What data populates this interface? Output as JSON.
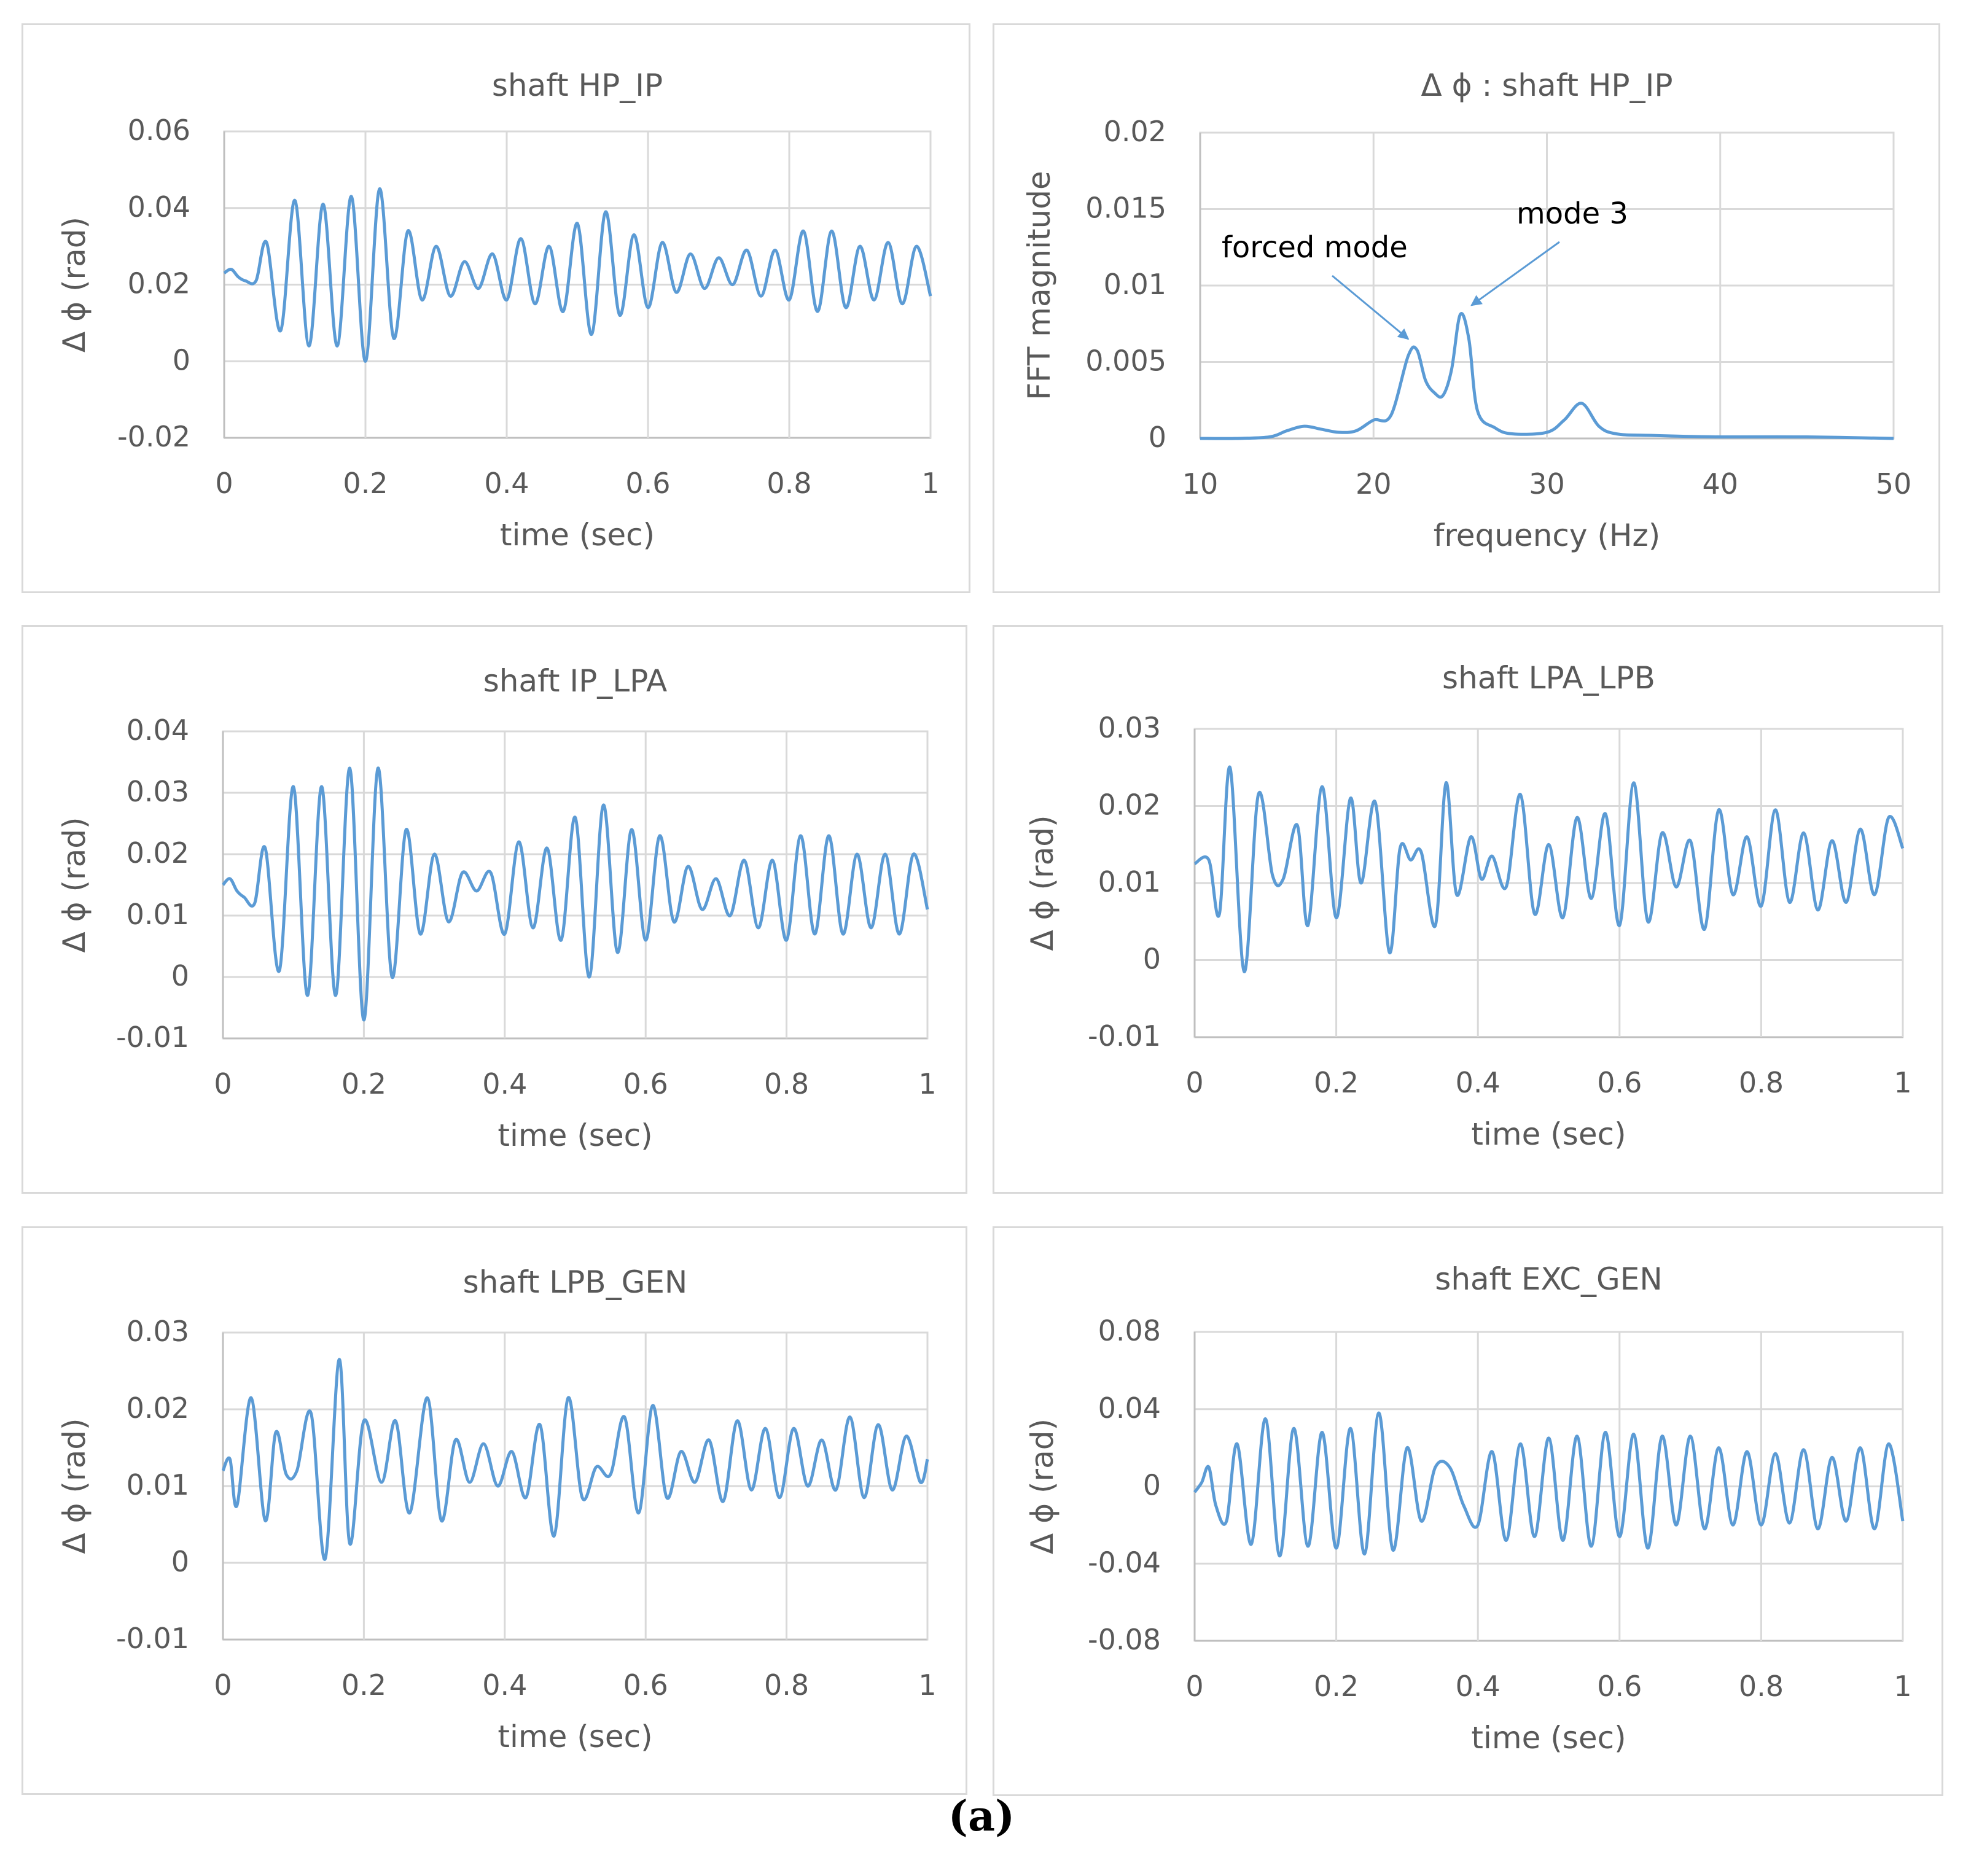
{
  "colors": {
    "series": "#5b9bd5",
    "grid": "#d9d9d9",
    "axis": "#bfbfbf",
    "text": "#595959",
    "annotation": "#000000"
  },
  "caption": "(a)",
  "chart_data": [
    {
      "id": "hp_ip",
      "type": "line",
      "title": "shaft HP_IP",
      "xlabel": "time (sec)",
      "ylabel": "Δ ϕ (rad)",
      "xlim": [
        0,
        1
      ],
      "ylim": [
        -0.02,
        0.06
      ],
      "xticks": [
        0,
        0.2,
        0.4,
        0.6,
        0.8,
        1
      ],
      "xtick_labels": [
        "0",
        "0.2",
        "0.4",
        "0.6",
        "0.8",
        "1"
      ],
      "yticks": [
        -0.02,
        0,
        0.02,
        0.04,
        0.06
      ],
      "ytick_labels": [
        "-0.02",
        "0",
        "0.02",
        "0.04",
        "0.06"
      ],
      "series": [
        {
          "name": "Δ ϕ",
          "x": [
            0,
            0.01,
            0.02,
            0.03,
            0.045,
            0.06,
            0.08,
            0.1,
            0.12,
            0.14,
            0.16,
            0.18,
            0.2,
            0.22,
            0.24,
            0.26,
            0.28,
            0.3,
            0.32,
            0.34,
            0.36,
            0.38,
            0.4,
            0.42,
            0.44,
            0.46,
            0.48,
            0.5,
            0.52,
            0.54,
            0.56,
            0.58,
            0.6,
            0.62,
            0.64,
            0.66,
            0.68,
            0.7,
            0.72,
            0.74,
            0.76,
            0.78,
            0.8,
            0.82,
            0.84,
            0.86,
            0.88,
            0.9,
            0.92,
            0.94,
            0.96,
            0.98,
            1.0
          ],
          "y": [
            0.023,
            0.024,
            0.022,
            0.021,
            0.021,
            0.031,
            0.008,
            0.042,
            0.004,
            0.041,
            0.004,
            0.043,
            0.0,
            0.045,
            0.006,
            0.034,
            0.016,
            0.03,
            0.017,
            0.026,
            0.019,
            0.028,
            0.016,
            0.032,
            0.015,
            0.03,
            0.013,
            0.036,
            0.007,
            0.039,
            0.012,
            0.033,
            0.014,
            0.031,
            0.018,
            0.028,
            0.019,
            0.027,
            0.02,
            0.029,
            0.017,
            0.029,
            0.016,
            0.034,
            0.013,
            0.034,
            0.014,
            0.03,
            0.016,
            0.031,
            0.015,
            0.03,
            0.017
          ]
        }
      ]
    },
    {
      "id": "fft",
      "type": "line",
      "title": "Δ ϕ : shaft HP_IP",
      "xlabel": "frequency (Hz)",
      "ylabel": "FFT magnitude",
      "xlim": [
        10,
        50
      ],
      "ylim": [
        0,
        0.02
      ],
      "xticks": [
        10,
        20,
        30,
        40,
        50
      ],
      "xtick_labels": [
        "10",
        "20",
        "30",
        "40",
        "50"
      ],
      "yticks": [
        0,
        0.005,
        0.01,
        0.015,
        0.02
      ],
      "ytick_labels": [
        "0",
        "0.005",
        "0.01",
        "0.015",
        "0.02"
      ],
      "annotations": [
        {
          "text": "forced mode",
          "x": 21.0,
          "y": 0.0061
        },
        {
          "text": "mode 3",
          "x": 25.5,
          "y": 0.0083
        }
      ],
      "series": [
        {
          "name": "FFT",
          "x": [
            10,
            12,
            14,
            15,
            16,
            17,
            18,
            19,
            20,
            21,
            22,
            22.5,
            23,
            23.5,
            24,
            24.5,
            25,
            25.5,
            26,
            27,
            28,
            30,
            31,
            32,
            33,
            34,
            36,
            40,
            45,
            50
          ],
          "y": [
            0.0,
            0.0,
            0.0001,
            0.0005,
            0.0008,
            0.0006,
            0.0004,
            0.0005,
            0.0012,
            0.0015,
            0.0054,
            0.0058,
            0.0038,
            0.003,
            0.0028,
            0.0045,
            0.0081,
            0.0065,
            0.0018,
            0.0007,
            0.0003,
            0.0004,
            0.0012,
            0.0023,
            0.0008,
            0.0003,
            0.0002,
            0.0001,
            0.0001,
            0.0
          ]
        }
      ]
    },
    {
      "id": "ip_lpa",
      "type": "line",
      "title": "shaft IP_LPA",
      "xlabel": "time (sec)",
      "ylabel": "Δ ϕ (rad)",
      "xlim": [
        0,
        1
      ],
      "ylim": [
        -0.01,
        0.04
      ],
      "xticks": [
        0,
        0.2,
        0.4,
        0.6,
        0.8,
        1
      ],
      "xtick_labels": [
        "0",
        "0.2",
        "0.4",
        "0.6",
        "0.8",
        "1"
      ],
      "yticks": [
        -0.01,
        0,
        0.01,
        0.02,
        0.03,
        0.04
      ],
      "ytick_labels": [
        "-0.01",
        "0",
        "0.01",
        "0.02",
        "0.03",
        "0.04"
      ],
      "series": [
        {
          "name": "Δ ϕ",
          "x": [
            0,
            0.01,
            0.02,
            0.03,
            0.045,
            0.06,
            0.08,
            0.1,
            0.12,
            0.14,
            0.16,
            0.18,
            0.2,
            0.22,
            0.24,
            0.26,
            0.28,
            0.3,
            0.32,
            0.34,
            0.36,
            0.38,
            0.4,
            0.42,
            0.44,
            0.46,
            0.48,
            0.5,
            0.52,
            0.54,
            0.56,
            0.58,
            0.6,
            0.62,
            0.64,
            0.66,
            0.68,
            0.7,
            0.72,
            0.74,
            0.76,
            0.78,
            0.8,
            0.82,
            0.84,
            0.86,
            0.88,
            0.9,
            0.92,
            0.94,
            0.96,
            0.98,
            1.0
          ],
          "y": [
            0.015,
            0.016,
            0.014,
            0.013,
            0.012,
            0.021,
            0.001,
            0.031,
            -0.003,
            0.031,
            -0.003,
            0.034,
            -0.007,
            0.034,
            0.0,
            0.024,
            0.007,
            0.02,
            0.009,
            0.017,
            0.014,
            0.017,
            0.007,
            0.022,
            0.008,
            0.021,
            0.006,
            0.026,
            0.0,
            0.028,
            0.004,
            0.024,
            0.006,
            0.023,
            0.009,
            0.018,
            0.011,
            0.016,
            0.01,
            0.019,
            0.008,
            0.019,
            0.006,
            0.023,
            0.007,
            0.023,
            0.007,
            0.02,
            0.008,
            0.02,
            0.007,
            0.02,
            0.011
          ]
        }
      ]
    },
    {
      "id": "lpa_lpb",
      "type": "line",
      "title": "shaft LPA_LPB",
      "xlabel": "time (sec)",
      "ylabel": "Δ ϕ (rad)",
      "xlim": [
        0,
        1
      ],
      "ylim": [
        -0.01,
        0.03
      ],
      "xticks": [
        0,
        0.2,
        0.4,
        0.6,
        0.8,
        1
      ],
      "xtick_labels": [
        "0",
        "0.2",
        "0.4",
        "0.6",
        "0.8",
        "1"
      ],
      "yticks": [
        -0.01,
        0,
        0.01,
        0.02,
        0.03
      ],
      "ytick_labels": [
        "-0.01",
        "0",
        "0.01",
        "0.02",
        "0.03"
      ],
      "series": [
        {
          "name": "Δ ϕ",
          "x": [
            0,
            0.02,
            0.035,
            0.05,
            0.07,
            0.09,
            0.11,
            0.125,
            0.145,
            0.16,
            0.18,
            0.2,
            0.22,
            0.235,
            0.255,
            0.275,
            0.29,
            0.305,
            0.32,
            0.34,
            0.355,
            0.37,
            0.39,
            0.405,
            0.42,
            0.44,
            0.46,
            0.48,
            0.5,
            0.52,
            0.54,
            0.56,
            0.58,
            0.6,
            0.62,
            0.64,
            0.66,
            0.68,
            0.7,
            0.72,
            0.74,
            0.76,
            0.78,
            0.8,
            0.82,
            0.84,
            0.86,
            0.88,
            0.9,
            0.92,
            0.94,
            0.96,
            0.98,
            1.0
          ],
          "y": [
            0.0125,
            0.013,
            0.006,
            0.025,
            -0.0015,
            0.0215,
            0.011,
            0.0105,
            0.0175,
            0.0045,
            0.0225,
            0.0055,
            0.021,
            0.01,
            0.0205,
            0.001,
            0.0145,
            0.013,
            0.014,
            0.0045,
            0.023,
            0.0085,
            0.016,
            0.0105,
            0.0135,
            0.0095,
            0.0215,
            0.006,
            0.015,
            0.0055,
            0.0185,
            0.008,
            0.019,
            0.0045,
            0.023,
            0.005,
            0.0165,
            0.0095,
            0.0155,
            0.004,
            0.0195,
            0.0085,
            0.016,
            0.007,
            0.0195,
            0.0075,
            0.0165,
            0.0065,
            0.0155,
            0.0075,
            0.017,
            0.0085,
            0.0185,
            0.0145
          ]
        }
      ]
    },
    {
      "id": "lpb_gen",
      "type": "line",
      "title": "shaft LPB_GEN",
      "xlabel": "time (sec)",
      "ylabel": "Δ ϕ (rad)",
      "xlim": [
        0,
        1
      ],
      "ylim": [
        -0.01,
        0.03
      ],
      "xticks": [
        0,
        0.2,
        0.4,
        0.6,
        0.8,
        1
      ],
      "xtick_labels": [
        "0",
        "0.2",
        "0.4",
        "0.6",
        "0.8",
        "1"
      ],
      "yticks": [
        -0.01,
        0,
        0.01,
        0.02,
        0.03
      ],
      "ytick_labels": [
        "-0.01",
        "0",
        "0.01",
        "0.02",
        "0.03"
      ],
      "series": [
        {
          "name": "Δ ϕ",
          "x": [
            0,
            0.01,
            0.02,
            0.04,
            0.06,
            0.075,
            0.09,
            0.105,
            0.125,
            0.145,
            0.165,
            0.18,
            0.2,
            0.225,
            0.245,
            0.265,
            0.29,
            0.31,
            0.33,
            0.35,
            0.37,
            0.39,
            0.41,
            0.43,
            0.45,
            0.47,
            0.49,
            0.51,
            0.53,
            0.55,
            0.57,
            0.59,
            0.61,
            0.63,
            0.65,
            0.67,
            0.69,
            0.71,
            0.73,
            0.75,
            0.77,
            0.79,
            0.81,
            0.83,
            0.85,
            0.87,
            0.89,
            0.91,
            0.93,
            0.95,
            0.97,
            0.99,
            1.0
          ],
          "y": [
            0.012,
            0.0135,
            0.0075,
            0.0215,
            0.0055,
            0.017,
            0.0115,
            0.012,
            0.0195,
            0.0005,
            0.0265,
            0.0025,
            0.0185,
            0.0105,
            0.0185,
            0.0065,
            0.0215,
            0.0055,
            0.016,
            0.0105,
            0.0155,
            0.01,
            0.0145,
            0.0085,
            0.018,
            0.0035,
            0.0215,
            0.0085,
            0.0125,
            0.0115,
            0.019,
            0.0065,
            0.0205,
            0.0085,
            0.0145,
            0.0105,
            0.016,
            0.008,
            0.0185,
            0.0095,
            0.0175,
            0.0085,
            0.0175,
            0.01,
            0.016,
            0.0095,
            0.019,
            0.0085,
            0.018,
            0.0095,
            0.0165,
            0.0105,
            0.0135
          ]
        }
      ]
    },
    {
      "id": "exc_gen",
      "type": "line",
      "title": "shaft EXC_GEN",
      "xlabel": "time (sec)",
      "ylabel": "Δ ϕ (rad)",
      "xlim": [
        0,
        1
      ],
      "ylim": [
        -0.08,
        0.08
      ],
      "xticks": [
        0,
        0.2,
        0.4,
        0.6,
        0.8,
        1
      ],
      "xtick_labels": [
        "0",
        "0.2",
        "0.4",
        "0.6",
        "0.8",
        "1"
      ],
      "yticks": [
        -0.08,
        -0.04,
        0,
        0.04,
        0.08
      ],
      "ytick_labels": [
        "-0.08",
        "-0.04",
        "0",
        "0.04",
        "0.08"
      ],
      "series": [
        {
          "name": "Δ ϕ",
          "x": [
            0,
            0.01,
            0.02,
            0.03,
            0.045,
            0.06,
            0.08,
            0.1,
            0.12,
            0.14,
            0.16,
            0.18,
            0.2,
            0.22,
            0.24,
            0.26,
            0.28,
            0.3,
            0.32,
            0.34,
            0.36,
            0.38,
            0.4,
            0.42,
            0.44,
            0.46,
            0.48,
            0.5,
            0.52,
            0.54,
            0.56,
            0.58,
            0.6,
            0.62,
            0.64,
            0.66,
            0.68,
            0.7,
            0.72,
            0.74,
            0.76,
            0.78,
            0.8,
            0.82,
            0.84,
            0.86,
            0.88,
            0.9,
            0.92,
            0.94,
            0.96,
            0.98,
            1.0
          ],
          "y": [
            -0.003,
            0.002,
            0.01,
            -0.01,
            -0.018,
            0.022,
            -0.03,
            0.035,
            -0.036,
            0.03,
            -0.031,
            0.028,
            -0.032,
            0.03,
            -0.035,
            0.038,
            -0.033,
            0.02,
            -0.018,
            0.01,
            0.01,
            -0.01,
            -0.02,
            0.018,
            -0.028,
            0.022,
            -0.026,
            0.025,
            -0.028,
            0.026,
            -0.031,
            0.028,
            -0.026,
            0.027,
            -0.032,
            0.026,
            -0.02,
            0.026,
            -0.022,
            0.02,
            -0.02,
            0.018,
            -0.02,
            0.017,
            -0.019,
            0.019,
            -0.022,
            0.015,
            -0.018,
            0.02,
            -0.022,
            0.022,
            -0.018
          ]
        }
      ]
    }
  ]
}
